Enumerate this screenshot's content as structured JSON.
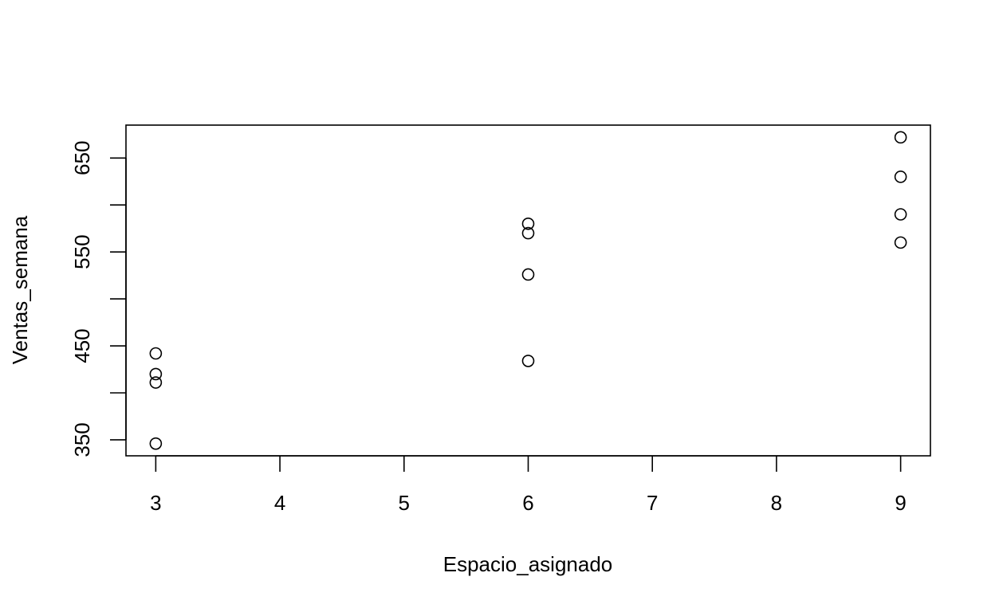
{
  "chart_data": {
    "type": "scatter",
    "title": "",
    "xlabel": "Espacio_asignado",
    "ylabel": "Ventas_semana",
    "xlim": [
      2.76,
      9.24
    ],
    "ylim": [
      333,
      685
    ],
    "x_ticks": [
      3,
      4,
      5,
      6,
      7,
      8,
      9
    ],
    "y_ticks": [
      350,
      400,
      450,
      500,
      550,
      600,
      650
    ],
    "y_tick_labels_shown": [
      350,
      450,
      550,
      650
    ],
    "grid": false,
    "legend": "none",
    "x": [
      3,
      3,
      3,
      3,
      6,
      6,
      6,
      6,
      9,
      9,
      9,
      9
    ],
    "y": [
      442,
      420,
      411,
      346,
      580,
      570,
      526,
      434,
      672,
      630,
      590,
      560
    ]
  }
}
